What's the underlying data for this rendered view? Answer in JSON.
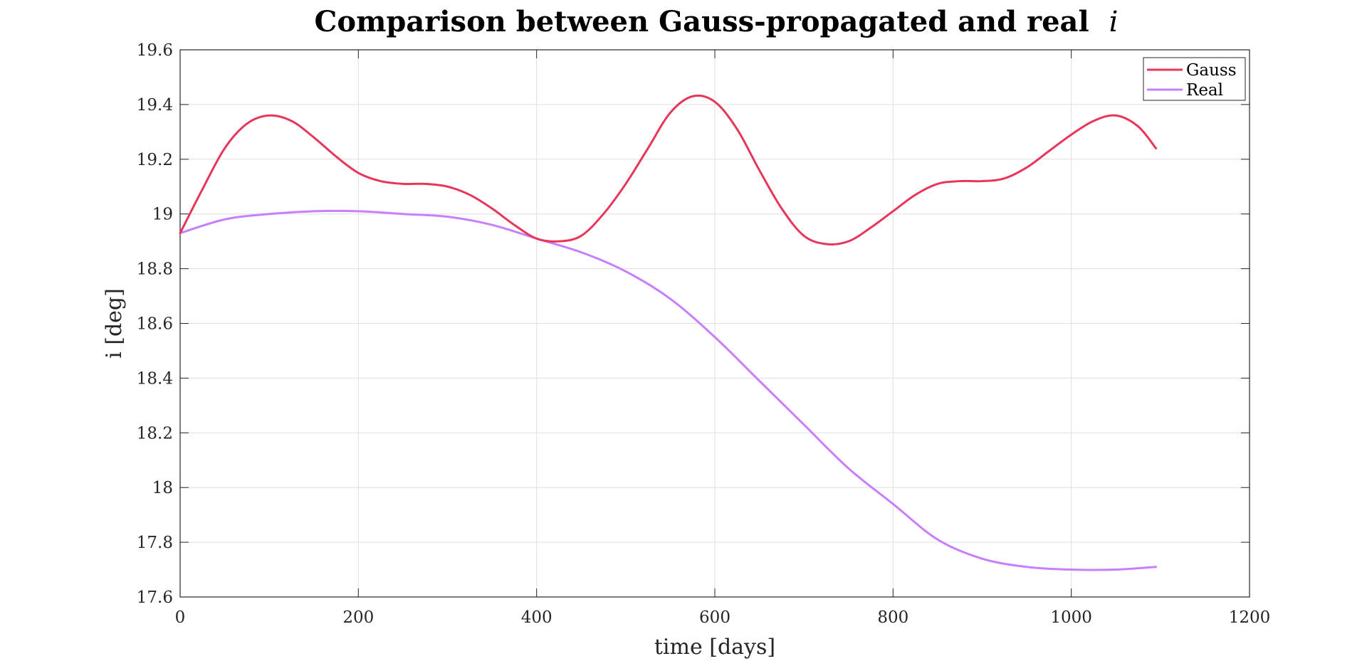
{
  "chart_data": {
    "type": "line",
    "title": "Comparison between Gauss-propagated and real",
    "title_symbol": "i",
    "xlabel": "time [days]",
    "ylabel": "i [deg]",
    "xlim": [
      0,
      1200
    ],
    "ylim": [
      17.6,
      19.6
    ],
    "xticks": [
      0,
      200,
      400,
      600,
      800,
      1000,
      1200
    ],
    "xtick_labels": [
      "0",
      "200",
      "400",
      "600",
      "800",
      "1000",
      "1200"
    ],
    "yticks": [
      17.6,
      17.8,
      18.0,
      18.2,
      18.4,
      18.6,
      18.8,
      19.0,
      19.2,
      19.4,
      19.6
    ],
    "ytick_labels": [
      "17.6",
      "17.8",
      "18",
      "18.2",
      "18.4",
      "18.6",
      "18.8",
      "19",
      "19.2",
      "19.4",
      "19.6"
    ],
    "grid": true,
    "legend_position": "top-right",
    "series": [
      {
        "name": "Gauss",
        "color": "#e8365b",
        "x": [
          0,
          25,
          50,
          75,
          100,
          125,
          150,
          175,
          200,
          225,
          250,
          275,
          300,
          325,
          350,
          375,
          400,
          425,
          450,
          475,
          500,
          525,
          550,
          575,
          600,
          625,
          650,
          675,
          700,
          725,
          750,
          775,
          800,
          825,
          850,
          875,
          900,
          925,
          950,
          975,
          1000,
          1025,
          1050,
          1075,
          1095
        ],
        "y": [
          18.93,
          19.09,
          19.24,
          19.33,
          19.36,
          19.34,
          19.28,
          19.21,
          19.15,
          19.12,
          19.11,
          19.11,
          19.1,
          19.07,
          19.02,
          18.96,
          18.91,
          18.9,
          18.92,
          19.0,
          19.11,
          19.24,
          19.37,
          19.43,
          19.41,
          19.31,
          19.16,
          19.02,
          18.92,
          18.89,
          18.9,
          18.95,
          19.01,
          19.07,
          19.11,
          19.12,
          19.12,
          19.13,
          19.17,
          19.23,
          19.29,
          19.34,
          19.36,
          19.32,
          19.24
        ]
      },
      {
        "name": "Real",
        "color": "#c87fff",
        "x": [
          0,
          50,
          100,
          150,
          200,
          250,
          300,
          350,
          400,
          450,
          500,
          550,
          600,
          650,
          700,
          750,
          800,
          850,
          900,
          950,
          1000,
          1050,
          1095
        ],
        "y": [
          18.93,
          18.98,
          19.0,
          19.01,
          19.01,
          19.0,
          18.99,
          18.96,
          18.91,
          18.86,
          18.79,
          18.69,
          18.55,
          18.39,
          18.23,
          18.07,
          17.94,
          17.81,
          17.74,
          17.71,
          17.7,
          17.7,
          17.71
        ]
      }
    ]
  }
}
